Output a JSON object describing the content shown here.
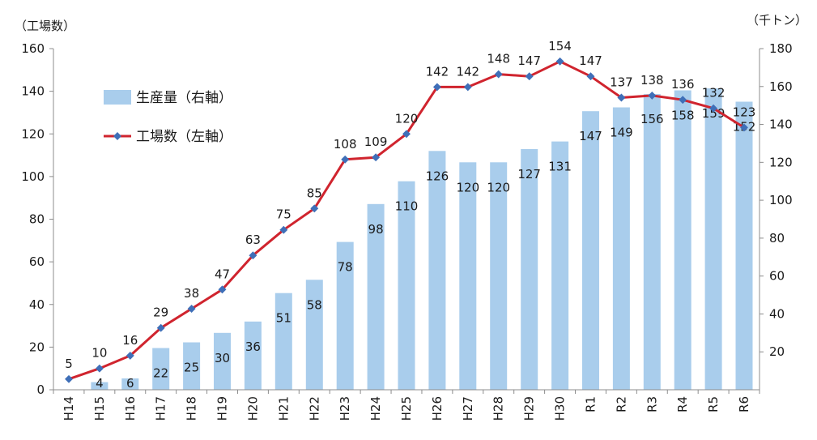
{
  "chart_data": {
    "type": "bar",
    "categories": [
      "H14",
      "H15",
      "H16",
      "H17",
      "H18",
      "H19",
      "H20",
      "H21",
      "H22",
      "H23",
      "H24",
      "H25",
      "H26",
      "H27",
      "H28",
      "H29",
      "H30",
      "R1",
      "R2",
      "R3",
      "R4",
      "R5",
      "R6"
    ],
    "series": [
      {
        "name": "生産量（右軸）",
        "type": "bar",
        "axis": "right",
        "color": "#a9cdec",
        "values": [
          0,
          4,
          6,
          22,
          25,
          30,
          36,
          51,
          58,
          78,
          98,
          110,
          126,
          120,
          120,
          127,
          131,
          147,
          149,
          156,
          158,
          159,
          152
        ],
        "labels": [
          "",
          "4",
          "6",
          "22",
          "25",
          "30",
          "36",
          "51",
          "58",
          "78",
          "98",
          "110",
          "126",
          "120",
          "120",
          "127",
          "131",
          "147",
          "149",
          "156",
          "158",
          "159",
          "152"
        ]
      },
      {
        "name": "工場数（左軸）",
        "type": "line",
        "axis": "left",
        "color": "#d0242e",
        "marker_color": "#3f6fb8",
        "values": [
          5,
          10,
          16,
          29,
          38,
          47,
          63,
          75,
          85,
          108,
          109,
          120,
          142,
          142,
          148,
          147,
          154,
          147,
          137,
          138,
          136,
          132,
          123
        ]
      }
    ],
    "left_axis": {
      "title": "（工場数）",
      "min": 0,
      "max": 160,
      "ticks": [
        "0",
        "20",
        "40",
        "60",
        "80",
        "100",
        "120",
        "140",
        "160"
      ]
    },
    "right_axis": {
      "title": "（千トン）",
      "min": 0,
      "max": 180,
      "ticks": [
        "20",
        "40",
        "60",
        "80",
        "100",
        "120",
        "140",
        "160",
        "180"
      ]
    },
    "legend": {
      "position": "top-left",
      "items": [
        "生産量（右軸）",
        "工場数（左軸）"
      ]
    },
    "grid": false
  }
}
